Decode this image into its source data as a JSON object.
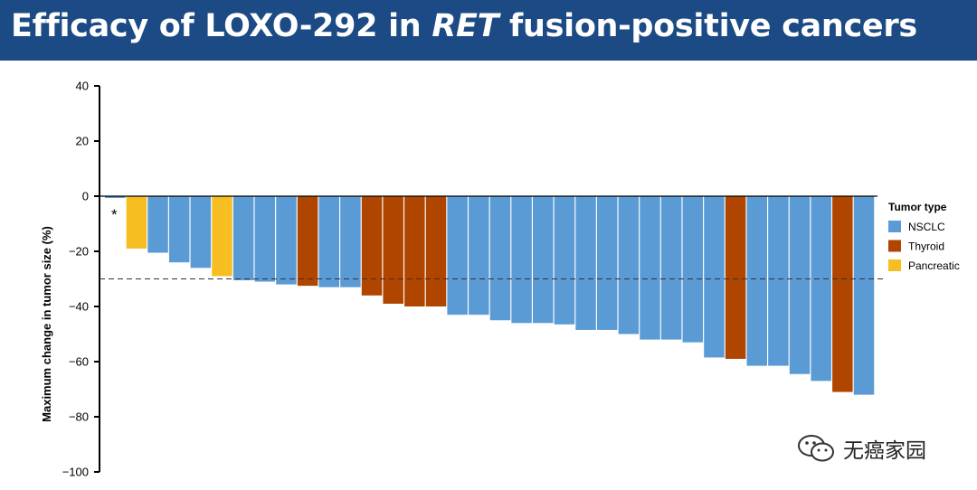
{
  "header": {
    "title_prefix": "Efficacy of LOXO-292 in ",
    "title_italic": "RET",
    "title_suffix": " fusion-positive cancers",
    "background_color": "#1c4a84"
  },
  "watermark": {
    "text": "无癌家园",
    "icon": "wechat-icon"
  },
  "chart_data": {
    "type": "bar",
    "ylabel": "Maximum change in tumor size (%)",
    "ylim": [
      -100,
      40
    ],
    "yticks": [
      40,
      20,
      0,
      -20,
      -40,
      -60,
      -80,
      -100
    ],
    "reference_line": -30,
    "annotation": "*",
    "legend": {
      "title": "Tumor type",
      "placement": "right",
      "entries": [
        {
          "name": "NSCLC",
          "color": "#5b9bd5"
        },
        {
          "name": "Thyroid",
          "color": "#b04500"
        },
        {
          "name": "Pancreatic",
          "color": "#f7be22"
        }
      ]
    },
    "bars": [
      {
        "value": -0.5,
        "type": "NSCLC"
      },
      {
        "value": -19,
        "type": "Pancreatic"
      },
      {
        "value": -20.5,
        "type": "NSCLC"
      },
      {
        "value": -24,
        "type": "NSCLC"
      },
      {
        "value": -26,
        "type": "NSCLC"
      },
      {
        "value": -29,
        "type": "Pancreatic"
      },
      {
        "value": -30.5,
        "type": "NSCLC"
      },
      {
        "value": -31,
        "type": "NSCLC"
      },
      {
        "value": -32,
        "type": "NSCLC"
      },
      {
        "value": -32.5,
        "type": "Thyroid"
      },
      {
        "value": -33,
        "type": "NSCLC"
      },
      {
        "value": -33,
        "type": "NSCLC"
      },
      {
        "value": -36,
        "type": "Thyroid"
      },
      {
        "value": -39,
        "type": "Thyroid"
      },
      {
        "value": -40,
        "type": "Thyroid"
      },
      {
        "value": -40,
        "type": "Thyroid"
      },
      {
        "value": -43,
        "type": "NSCLC"
      },
      {
        "value": -43,
        "type": "NSCLC"
      },
      {
        "value": -45,
        "type": "NSCLC"
      },
      {
        "value": -46,
        "type": "NSCLC"
      },
      {
        "value": -46,
        "type": "NSCLC"
      },
      {
        "value": -46.5,
        "type": "NSCLC"
      },
      {
        "value": -48.5,
        "type": "NSCLC"
      },
      {
        "value": -48.5,
        "type": "NSCLC"
      },
      {
        "value": -50,
        "type": "NSCLC"
      },
      {
        "value": -52,
        "type": "NSCLC"
      },
      {
        "value": -52,
        "type": "NSCLC"
      },
      {
        "value": -53,
        "type": "NSCLC"
      },
      {
        "value": -58.5,
        "type": "NSCLC"
      },
      {
        "value": -59,
        "type": "Thyroid"
      },
      {
        "value": -61.5,
        "type": "NSCLC"
      },
      {
        "value": -61.5,
        "type": "NSCLC"
      },
      {
        "value": -64.5,
        "type": "NSCLC"
      },
      {
        "value": -67,
        "type": "NSCLC"
      },
      {
        "value": -71,
        "type": "Thyroid"
      },
      {
        "value": -72,
        "type": "NSCLC"
      }
    ]
  }
}
